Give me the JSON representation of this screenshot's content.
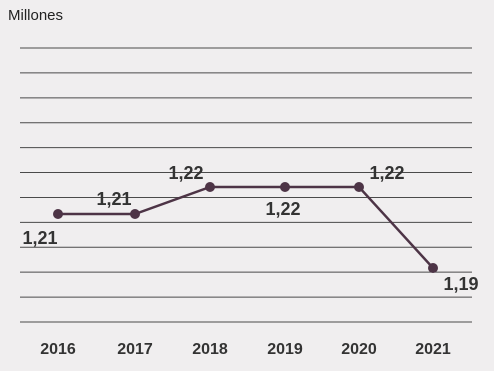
{
  "chart_data": {
    "type": "line",
    "unit_label": "Millones",
    "categories": [
      "2016",
      "2017",
      "2018",
      "2019",
      "2020",
      "2021"
    ],
    "values": [
      1.21,
      1.21,
      1.22,
      1.22,
      1.22,
      1.19
    ],
    "data_labels": [
      "1,21",
      "1,21",
      "1,22",
      "1,22",
      "1,22",
      "1,19"
    ],
    "ylim": [
      1.17,
      1.23
    ],
    "grid": true,
    "legend": "none",
    "colors": {
      "series": "#4d3446",
      "background": "#f0eeef",
      "grid": "#4a4a4a"
    }
  }
}
